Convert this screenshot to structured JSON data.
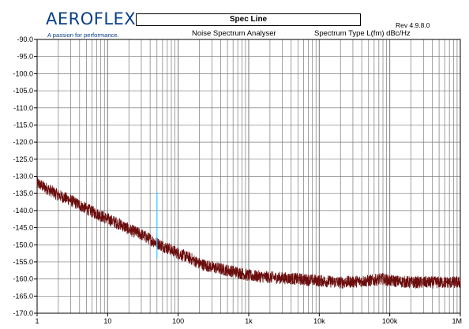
{
  "header": {
    "logo_text": "AEROFLEX",
    "logo_tagline": "A passion for performance.",
    "title": "Spec Line",
    "subtitle": "Noise Spectrum Analyser",
    "spectrum_type": "Spectrum Type  L(fm) dBc/Hz",
    "revision": "Rev 4.9.8.0"
  },
  "chart_data": {
    "type": "line",
    "title": "",
    "xlabel": "",
    "ylabel": "",
    "x_scale": "log",
    "xlim": [
      1,
      1000000
    ],
    "ylim": [
      -170,
      -90
    ],
    "grid": true,
    "x_tick_labels": [
      "1",
      "10",
      "100",
      "1k",
      "10k",
      "100k",
      "1M"
    ],
    "y_tick_labels": [
      "-90.0",
      "-95.0",
      "-100.0",
      "-105.0",
      "-110.0",
      "-115.0",
      "-120.0",
      "-125.0",
      "-130.0",
      "-135.0",
      "-140.0",
      "-145.0",
      "-150.0",
      "-155.0",
      "-160.0",
      "-165.0",
      "-170.0"
    ],
    "series": [
      {
        "color": "#6b0d0d",
        "points": [
          [
            1,
            -132
          ],
          [
            1.5,
            -134
          ],
          [
            2,
            -135.5
          ],
          [
            3,
            -137
          ],
          [
            5,
            -139.5
          ],
          [
            8,
            -141.5
          ],
          [
            10,
            -142.5
          ],
          [
            15,
            -144
          ],
          [
            20,
            -145.5
          ],
          [
            30,
            -147
          ],
          [
            50,
            -149.5
          ],
          [
            80,
            -151.5
          ],
          [
            100,
            -152.5
          ],
          [
            150,
            -154
          ],
          [
            200,
            -155.5
          ],
          [
            300,
            -156.5
          ],
          [
            500,
            -157.5
          ],
          [
            700,
            -158
          ],
          [
            1000,
            -159
          ],
          [
            2000,
            -159.5
          ],
          [
            5000,
            -160
          ],
          [
            10000,
            -160.5
          ],
          [
            20000,
            -161
          ],
          [
            50000,
            -160.5
          ],
          [
            80000,
            -160
          ],
          [
            100000,
            -160.5
          ],
          [
            200000,
            -161
          ],
          [
            500000,
            -161
          ],
          [
            1000000,
            -161
          ]
        ]
      }
    ],
    "spur_marker": {
      "x": 50,
      "y_top": -134.5,
      "y_bottom": -154,
      "color": "#33ccff"
    },
    "background": "#ffffff",
    "grid_color": "#7a7a7a"
  }
}
